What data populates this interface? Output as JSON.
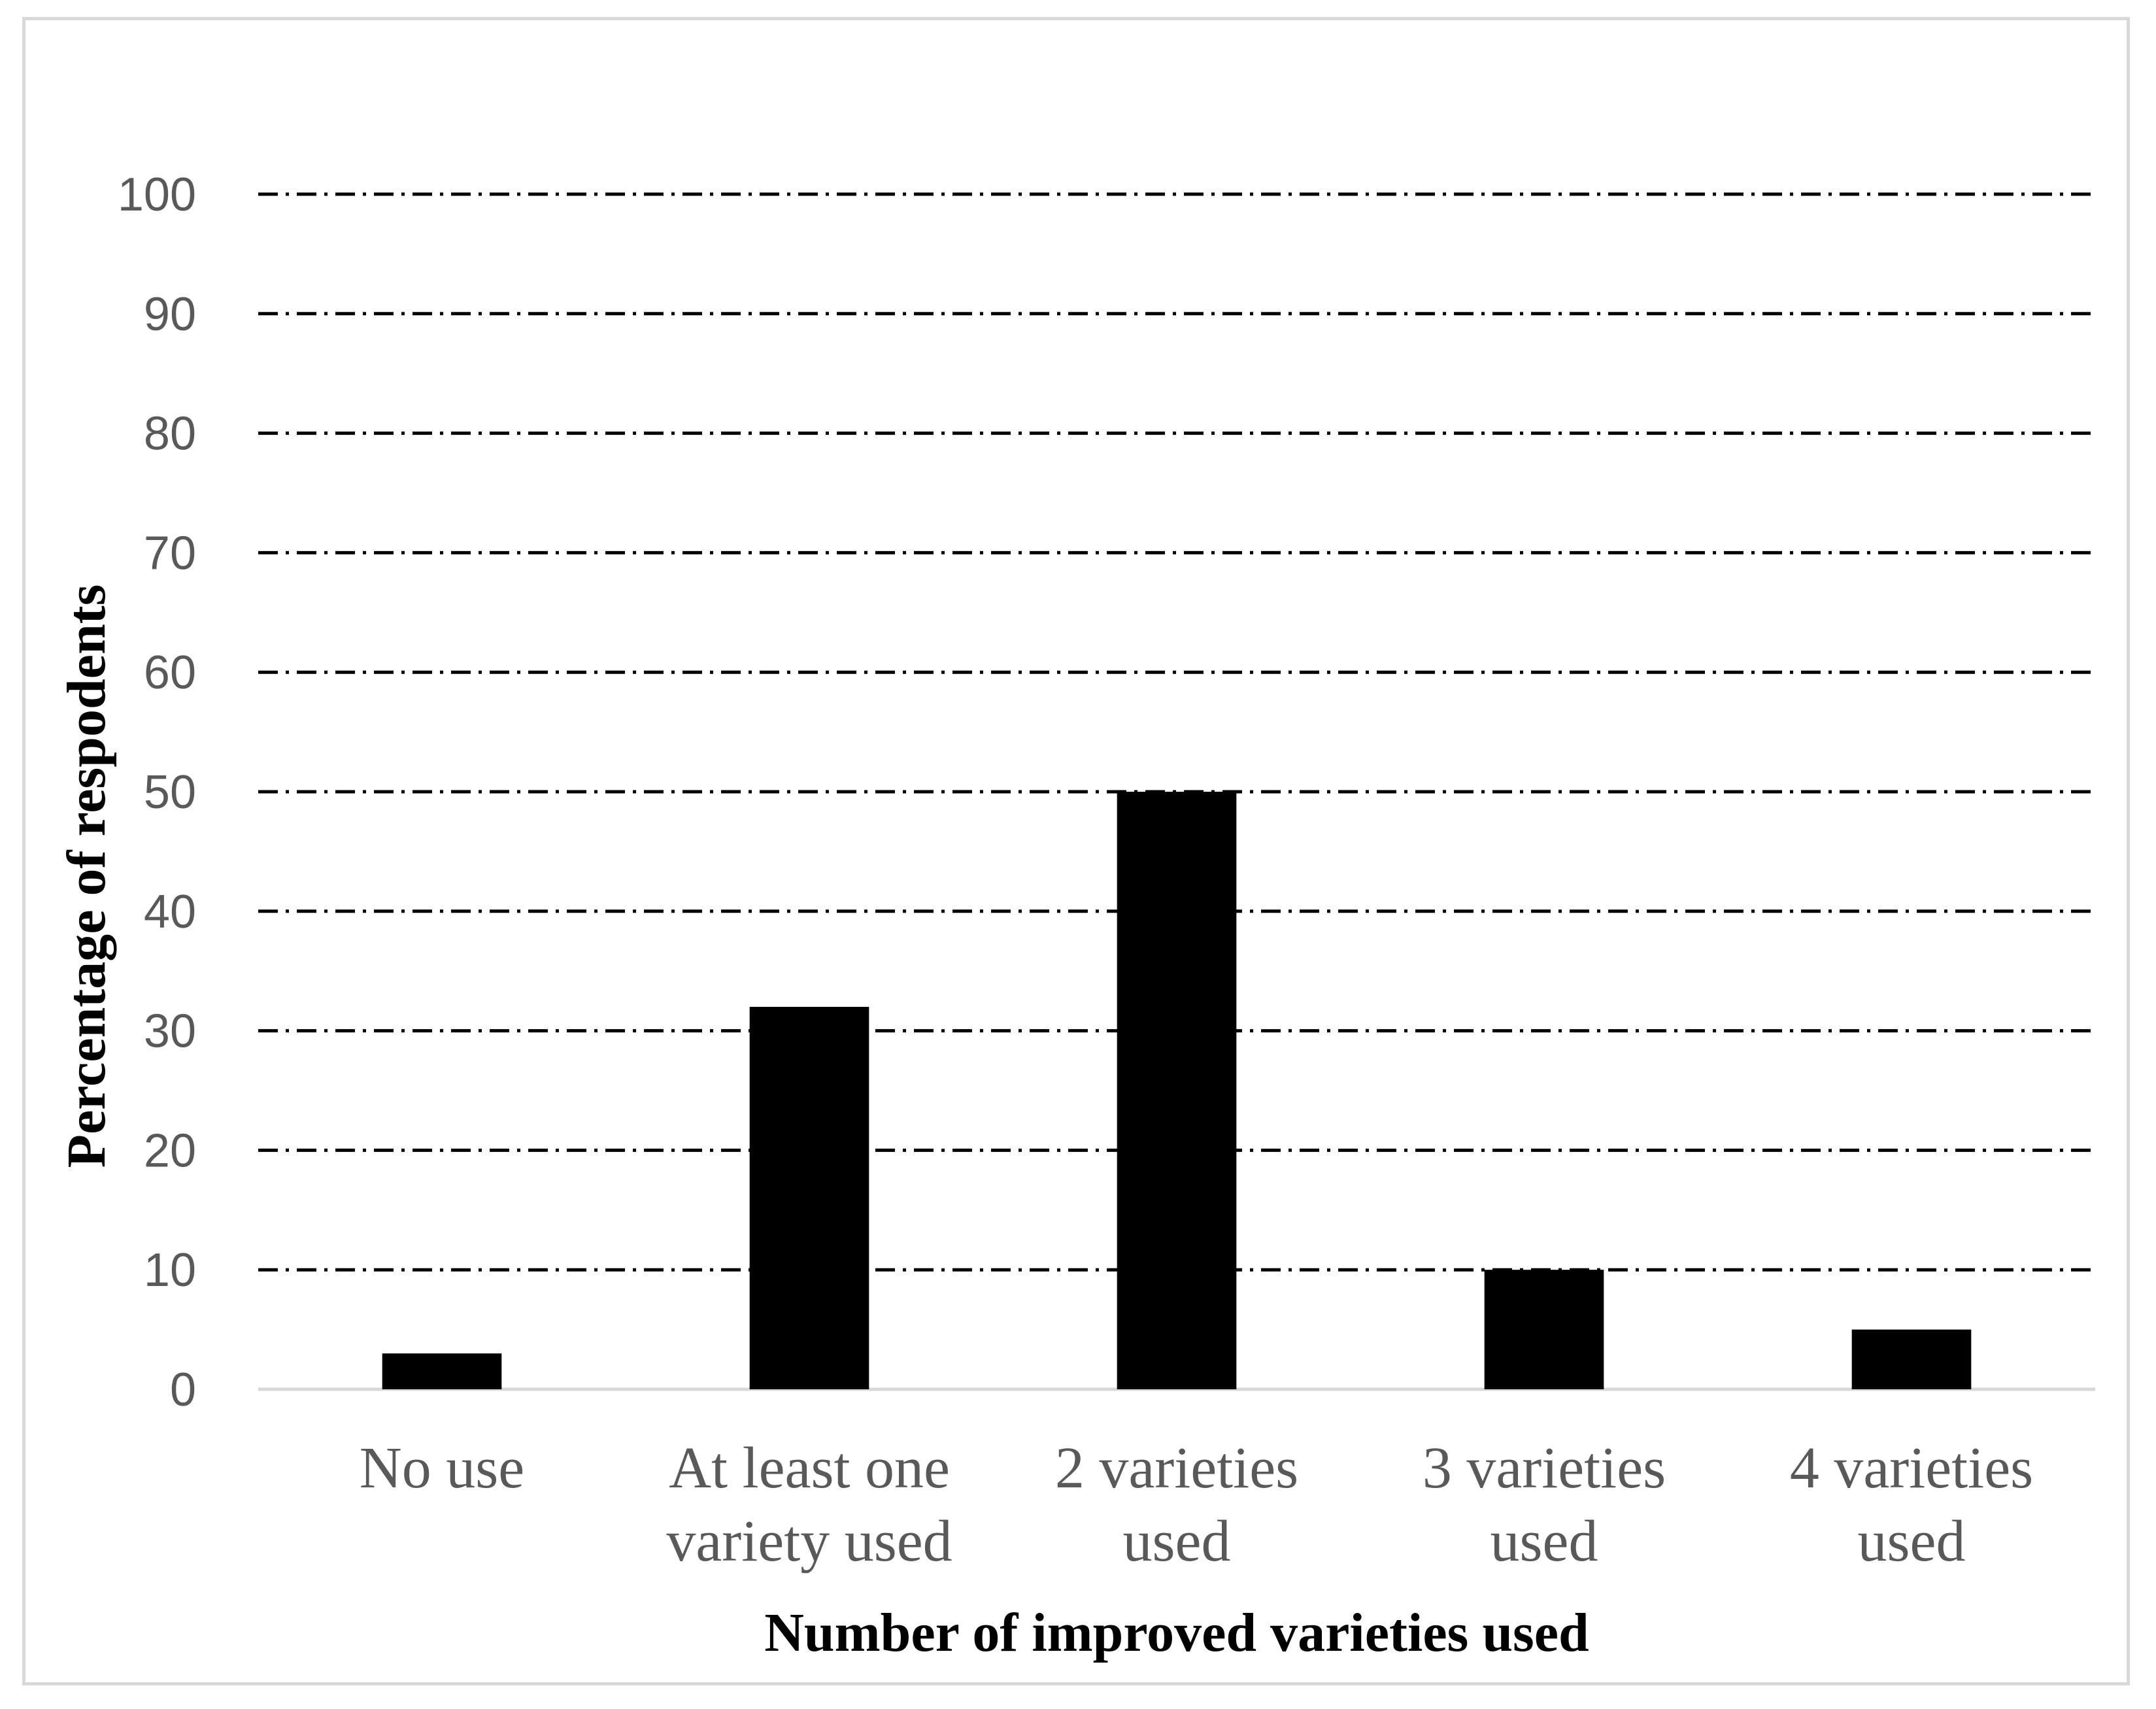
{
  "chart_data": {
    "type": "bar",
    "categories": [
      [
        "No use"
      ],
      [
        "At least one",
        "variety used"
      ],
      [
        "2 varieties",
        "used"
      ],
      [
        "3 varieties",
        "used"
      ],
      [
        "4 varieties",
        "used"
      ]
    ],
    "values": [
      3,
      32,
      50,
      10,
      5
    ],
    "xlabel": "Number of improved varieties used",
    "ylabel": "Percentage of respodents",
    "ylim": [
      0,
      100
    ],
    "yticks": [
      0,
      10,
      20,
      30,
      40,
      50,
      60,
      70,
      80,
      90,
      100
    ],
    "grid": "horizontal, dash-dot",
    "legend": "none",
    "colors": {
      "bar": "#000000",
      "grid": "#000000",
      "axis": "#d9d9d9",
      "tick_text": "#595959",
      "border": "#d9d9d9"
    }
  }
}
